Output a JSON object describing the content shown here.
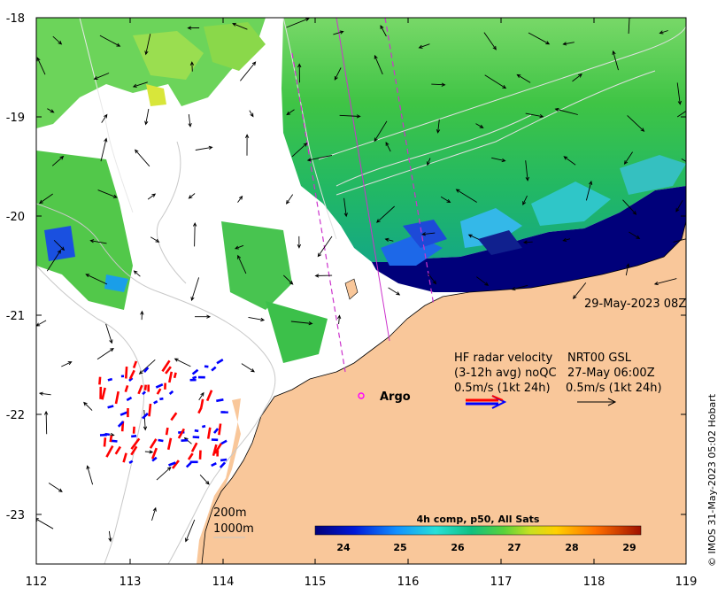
{
  "map": {
    "x_ticks": [
      "112",
      "113",
      "114",
      "115",
      "116",
      "117",
      "118",
      "119"
    ],
    "y_ticks": [
      "-18",
      "-19",
      "-20",
      "-21",
      "-22",
      "-23"
    ],
    "timestamp": "29-May-2023 08Z",
    "credit": "© IMOS 31-May-2023 05:02 Hobart",
    "marker_label": "Argo",
    "legend": {
      "hf_line1": "HF radar velocity",
      "hf_line2": "(3-12h avg) noQC",
      "hf_line3": "0.5m/s (1kt 24h)",
      "nrt_line1": "NRT00 GSL",
      "nrt_line2": "27-May 06:00Z",
      "nrt_line3": "0.5m/s (1kt 24h)"
    },
    "depth_200": "200m",
    "depth_1000": "1000m",
    "colorbar": {
      "title": "4h comp, p50, All Sats",
      "ticks": [
        "24",
        "25",
        "26",
        "27",
        "28",
        "29"
      ]
    },
    "colors": {
      "land": "#f9c79a",
      "cold": "#00007a",
      "warm": "#35c23a",
      "radar_red": "#ff0000",
      "radar_blue": "#0000ff",
      "track": "#cc33cc"
    }
  }
}
